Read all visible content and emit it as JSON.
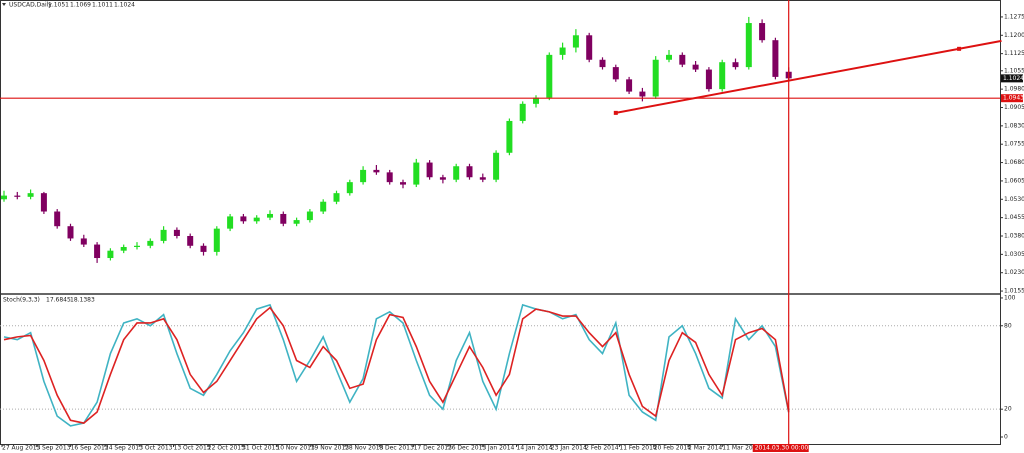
{
  "chart_data": [
    {
      "type": "candlestick",
      "symbol": "USDCAD,Daily",
      "up_color": "#22dd22",
      "down_color": "#800060",
      "open": [
        1.053,
        1.0545,
        1.054,
        1.0555,
        1.048,
        1.042,
        1.037,
        1.0345,
        1.029,
        1.032,
        1.0335,
        1.034,
        1.036,
        1.0405,
        1.038,
        1.034,
        1.0315,
        1.041,
        1.046,
        1.044,
        1.0455,
        1.047,
        1.043,
        1.0445,
        1.048,
        1.052,
        1.0555,
        1.06,
        1.065,
        1.064,
        1.06,
        1.059,
        1.068,
        1.062,
        1.061,
        1.0665,
        1.062,
        1.061,
        1.072,
        1.085,
        1.092,
        1.0945,
        1.112,
        1.115,
        1.12,
        1.11,
        1.107,
        1.102,
        1.097,
        1.095,
        1.11,
        1.112,
        1.108,
        1.106,
        1.098,
        1.109,
        1.107,
        1.125,
        1.118,
        1.1051
      ],
      "high": [
        1.0565,
        1.056,
        1.057,
        1.056,
        1.049,
        1.043,
        1.0385,
        1.0355,
        1.033,
        1.0345,
        1.0355,
        1.037,
        1.042,
        1.0415,
        1.039,
        1.035,
        1.042,
        1.047,
        1.047,
        1.0465,
        1.0485,
        1.048,
        1.0455,
        1.049,
        1.053,
        1.0565,
        1.061,
        1.0665,
        1.067,
        1.065,
        1.061,
        1.0695,
        1.069,
        1.063,
        1.0675,
        1.0675,
        1.0635,
        1.073,
        1.086,
        1.093,
        1.0955,
        1.113,
        1.117,
        1.1225,
        1.121,
        1.111,
        1.108,
        1.103,
        1.0985,
        1.1115,
        1.114,
        1.113,
        1.1095,
        1.107,
        1.11,
        1.1105,
        1.1275,
        1.1265,
        1.119,
        1.1069
      ],
      "low": [
        1.052,
        1.053,
        1.053,
        1.047,
        1.041,
        1.036,
        1.0335,
        1.027,
        1.028,
        1.031,
        1.0325,
        1.033,
        1.035,
        1.037,
        1.033,
        1.03,
        1.03,
        1.04,
        1.043,
        1.043,
        1.0445,
        1.042,
        1.042,
        1.0435,
        1.047,
        1.051,
        1.0545,
        1.059,
        1.063,
        1.059,
        1.0575,
        1.058,
        1.061,
        1.0595,
        1.06,
        1.061,
        1.06,
        1.06,
        1.071,
        1.084,
        1.0905,
        1.0935,
        1.11,
        1.113,
        1.109,
        1.106,
        1.101,
        1.096,
        1.093,
        1.094,
        1.109,
        1.107,
        1.105,
        1.097,
        1.097,
        1.106,
        1.106,
        1.117,
        1.102,
        1.1011
      ],
      "close": [
        1.0545,
        1.054,
        1.0555,
        1.048,
        1.042,
        1.037,
        1.0345,
        1.029,
        1.032,
        1.0335,
        1.034,
        1.036,
        1.0405,
        1.038,
        1.034,
        1.0315,
        1.041,
        1.046,
        1.044,
        1.0455,
        1.047,
        1.043,
        1.0445,
        1.048,
        1.052,
        1.0555,
        1.06,
        1.065,
        1.064,
        1.06,
        1.059,
        1.068,
        1.062,
        1.061,
        1.0665,
        1.062,
        1.061,
        1.072,
        1.085,
        1.092,
        1.0945,
        1.112,
        1.115,
        1.12,
        1.11,
        1.107,
        1.102,
        1.097,
        1.095,
        1.11,
        1.112,
        1.108,
        1.106,
        1.098,
        1.109,
        1.107,
        1.125,
        1.118,
        1.103,
        1.1024
      ],
      "ylim": [
        1.0143,
        1.1336
      ],
      "yticks": [
        1.1275,
        {
          "value": 1.12,
          "label": "1.1200"
        },
        1.1125,
        1.1055,
        {
          "value": 1.098,
          "label": "1.0980"
        },
        1.0905,
        {
          "value": 1.083,
          "label": "1.0830"
        },
        1.0755,
        {
          "value": 1.068,
          "label": "1.0680"
        },
        1.0605,
        {
          "value": 1.053,
          "label": "1.0530"
        },
        1.0455,
        {
          "value": 1.038,
          "label": "1.0380"
        },
        1.0305,
        {
          "value": 1.023,
          "label": "1.0230"
        },
        1.0155
      ],
      "hline": 1.0943,
      "line_color": "#dd1111",
      "trendline": {
        "x": [
          46,
          75
        ],
        "y": [
          1.0883,
          1.1177
        ]
      }
    },
    {
      "type": "line",
      "title": "Stoch(9,3,3)",
      "series": [
        {
          "name": "%K",
          "color": "#3fb3c3",
          "values": [
            72,
            70,
            75,
            40,
            15,
            8,
            10,
            25,
            60,
            82,
            85,
            80,
            88,
            60,
            35,
            30,
            45,
            62,
            75,
            92,
            95,
            70,
            40,
            55,
            72,
            48,
            25,
            42,
            85,
            90,
            82,
            55,
            30,
            20,
            55,
            75,
            40,
            20,
            60,
            95,
            92,
            90,
            85,
            88,
            70,
            60,
            82,
            30,
            18,
            12,
            72,
            80,
            60,
            35,
            28,
            85,
            70,
            80,
            65,
            17.6845
          ]
        },
        {
          "name": "%D",
          "color": "#dd2222",
          "values": [
            70,
            72,
            73,
            55,
            30,
            12,
            10,
            18,
            45,
            70,
            82,
            82,
            85,
            70,
            45,
            32,
            40,
            55,
            70,
            85,
            93,
            80,
            55,
            50,
            65,
            55,
            35,
            38,
            70,
            88,
            86,
            65,
            40,
            25,
            45,
            65,
            50,
            30,
            45,
            85,
            92,
            90,
            87,
            87,
            75,
            65,
            75,
            45,
            22,
            15,
            55,
            75,
            68,
            45,
            30,
            70,
            75,
            78,
            70,
            18.1383
          ]
        }
      ],
      "ylim": [
        -3.6,
        101.4
      ],
      "yticks": [
        100,
        80,
        20,
        0
      ],
      "levels": [
        80,
        20
      ],
      "xtick_labels": [
        "27 Aug 2013",
        "5 Sep 2013",
        "16 Sep 2013",
        "24 Sep 2013",
        "3 Oct 2013",
        "13 Oct 2013",
        "22 Oct 2013",
        "31 Oct 2013",
        "10 Nov 2013",
        "19 Nov 2013",
        "28 Nov 2013",
        "8 Dec 2013",
        "17 Dec 2013",
        "26 Dec 2013",
        "5 Jan 2014",
        "14 Jan 2014",
        "23 Jan 2014",
        "2 Feb 2014",
        "11 Feb 2014",
        "20 Feb 2014",
        "2 Mar 2014",
        "11 Mar 2014",
        "20 Mar 2014"
      ],
      "crosshair_label": "2014.03.30 00:00"
    }
  ]
}
